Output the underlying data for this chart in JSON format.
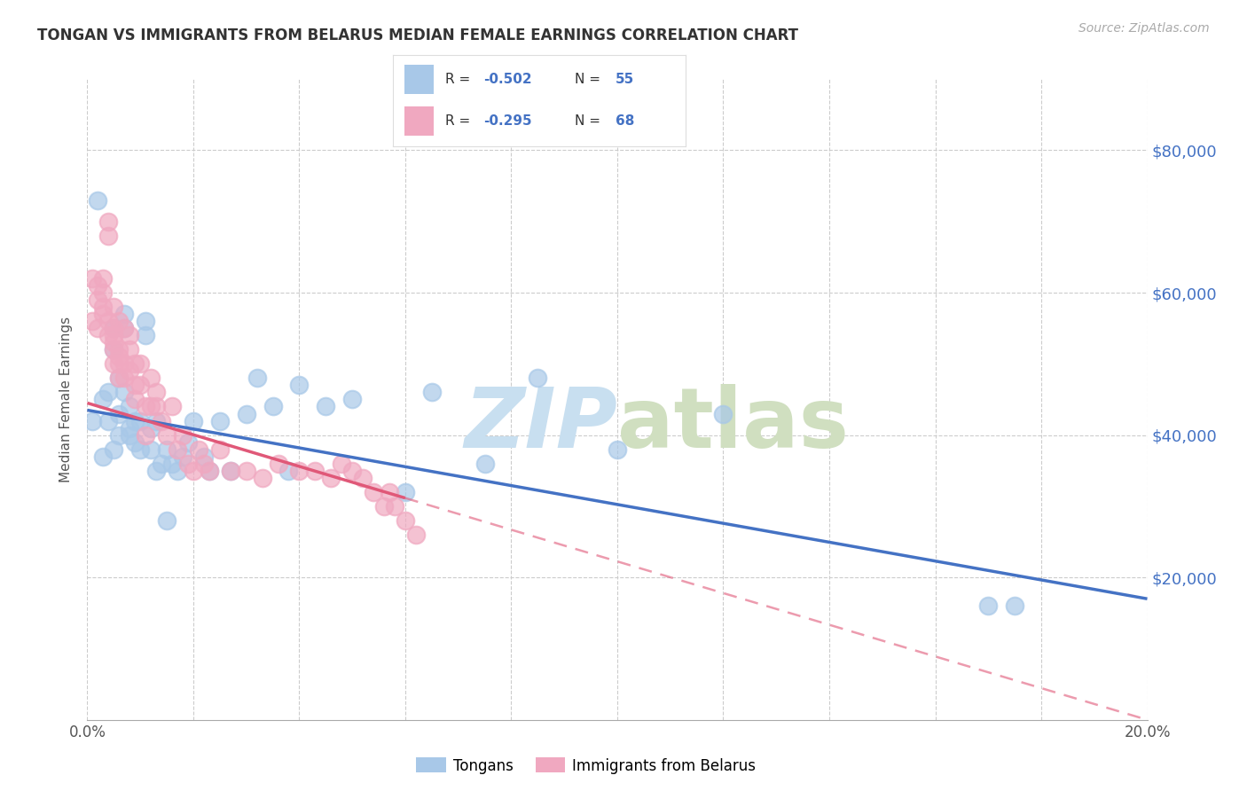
{
  "title": "TONGAN VS IMMIGRANTS FROM BELARUS MEDIAN FEMALE EARNINGS CORRELATION CHART",
  "source": "Source: ZipAtlas.com",
  "ylabel": "Median Female Earnings",
  "xlim": [
    0.0,
    0.2
  ],
  "ylim": [
    0,
    90000
  ],
  "xtick_positions": [
    0.0,
    0.02,
    0.04,
    0.06,
    0.08,
    0.1,
    0.12,
    0.14,
    0.16,
    0.18,
    0.2
  ],
  "ytick_positions": [
    0,
    20000,
    40000,
    60000,
    80000
  ],
  "ytick_labels": [
    "",
    "$20,000",
    "$40,000",
    "$60,000",
    "$80,000"
  ],
  "legend_label1": "Tongans",
  "legend_label2": "Immigrants from Belarus",
  "color_blue": "#a8c8e8",
  "color_pink": "#f0a8c0",
  "color_blue_line": "#4472c4",
  "color_pink_line": "#e05878",
  "tongans_x": [
    0.001,
    0.002,
    0.003,
    0.003,
    0.004,
    0.004,
    0.005,
    0.005,
    0.005,
    0.006,
    0.006,
    0.006,
    0.007,
    0.007,
    0.007,
    0.008,
    0.008,
    0.008,
    0.009,
    0.009,
    0.01,
    0.01,
    0.011,
    0.011,
    0.012,
    0.012,
    0.013,
    0.013,
    0.014,
    0.015,
    0.015,
    0.016,
    0.017,
    0.018,
    0.019,
    0.02,
    0.022,
    0.023,
    0.025,
    0.027,
    0.03,
    0.032,
    0.035,
    0.038,
    0.04,
    0.045,
    0.05,
    0.06,
    0.065,
    0.075,
    0.085,
    0.1,
    0.12,
    0.17,
    0.175
  ],
  "tongans_y": [
    42000,
    73000,
    45000,
    37000,
    46000,
    42000,
    38000,
    55000,
    52000,
    40000,
    48000,
    43000,
    57000,
    55000,
    46000,
    40000,
    44000,
    41000,
    42000,
    39000,
    38000,
    42000,
    56000,
    54000,
    41000,
    38000,
    42000,
    35000,
    36000,
    28000,
    38000,
    36000,
    35000,
    37000,
    39000,
    42000,
    37000,
    35000,
    42000,
    35000,
    43000,
    48000,
    44000,
    35000,
    47000,
    44000,
    45000,
    32000,
    46000,
    36000,
    48000,
    38000,
    43000,
    16000,
    16000
  ],
  "belarus_x": [
    0.001,
    0.001,
    0.002,
    0.002,
    0.002,
    0.003,
    0.003,
    0.003,
    0.003,
    0.004,
    0.004,
    0.004,
    0.004,
    0.005,
    0.005,
    0.005,
    0.005,
    0.005,
    0.005,
    0.006,
    0.006,
    0.006,
    0.006,
    0.006,
    0.007,
    0.007,
    0.007,
    0.008,
    0.008,
    0.008,
    0.009,
    0.009,
    0.009,
    0.01,
    0.01,
    0.011,
    0.011,
    0.012,
    0.012,
    0.013,
    0.013,
    0.014,
    0.015,
    0.016,
    0.017,
    0.018,
    0.019,
    0.02,
    0.021,
    0.022,
    0.023,
    0.025,
    0.027,
    0.03,
    0.033,
    0.036,
    0.04,
    0.043,
    0.046,
    0.048,
    0.05,
    0.052,
    0.054,
    0.056,
    0.057,
    0.058,
    0.06,
    0.062
  ],
  "belarus_y": [
    56000,
    62000,
    59000,
    55000,
    61000,
    58000,
    62000,
    60000,
    57000,
    54000,
    56000,
    68000,
    70000,
    53000,
    50000,
    55000,
    52000,
    54000,
    58000,
    51000,
    48000,
    52000,
    50000,
    56000,
    50000,
    55000,
    48000,
    52000,
    54000,
    49000,
    50000,
    45000,
    47000,
    50000,
    47000,
    44000,
    40000,
    48000,
    44000,
    44000,
    46000,
    42000,
    40000,
    44000,
    38000,
    40000,
    36000,
    35000,
    38000,
    36000,
    35000,
    38000,
    35000,
    35000,
    34000,
    36000,
    35000,
    35000,
    34000,
    36000,
    35000,
    34000,
    32000,
    30000,
    32000,
    30000,
    28000,
    26000
  ],
  "tongans_trend_x": [
    0.0,
    0.2
  ],
  "tongans_trend_y": [
    43500,
    17000
  ],
  "belarus_trend_x": [
    0.0,
    0.2
  ],
  "belarus_trend_y": [
    44500,
    0
  ],
  "belarus_trend_solid_end": 0.06
}
